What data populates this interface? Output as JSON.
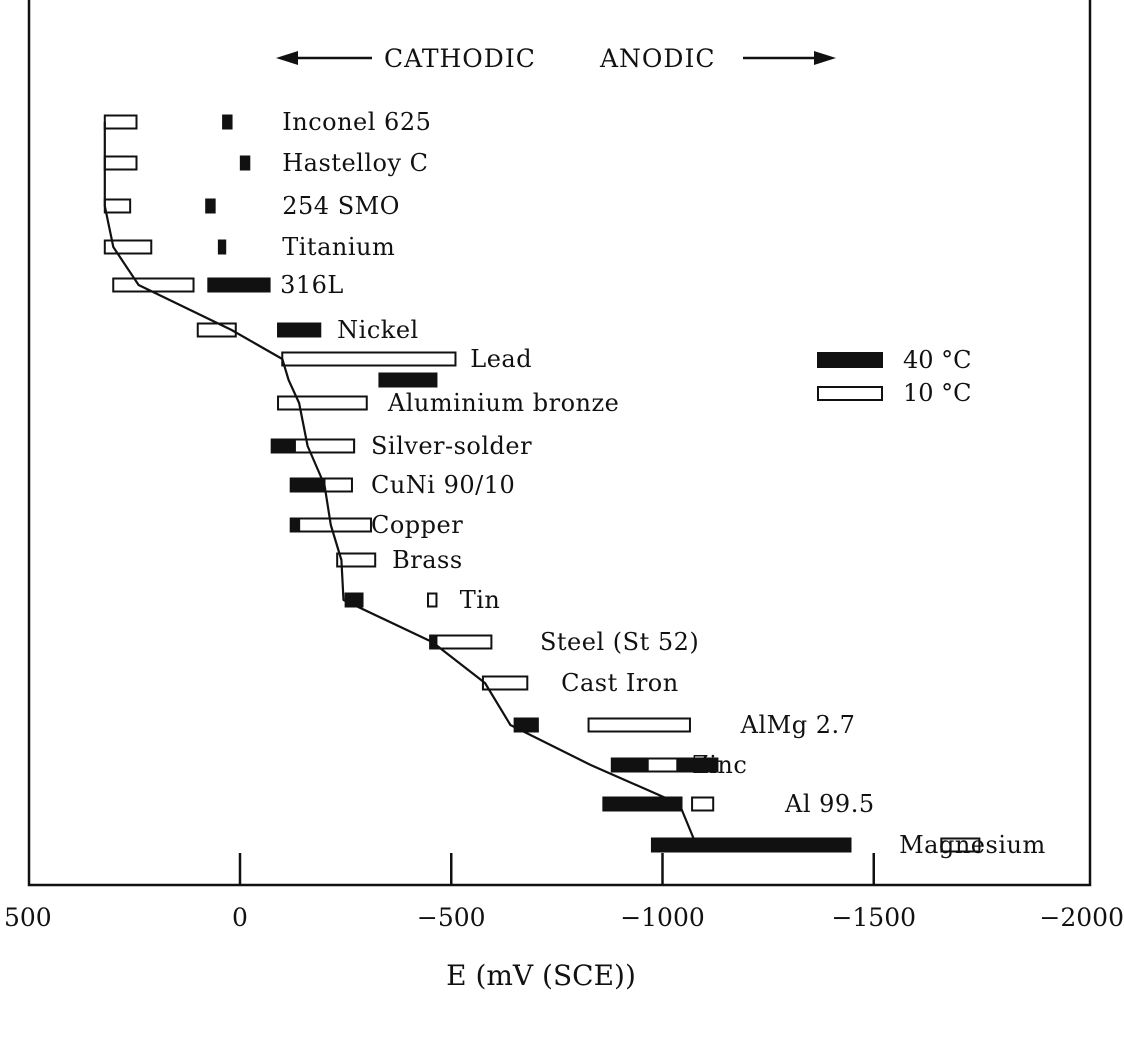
{
  "chart_data": {
    "type": "floating-bar",
    "title": "",
    "direction_left": "CATHODIC",
    "direction_right": "ANODIC",
    "xlabel": "E (mV (SCE))",
    "ylabel": "",
    "xlim": [
      500,
      -2000
    ],
    "xticks": [
      500,
      0,
      -500,
      -1000,
      -1500,
      -2000
    ],
    "xtick_labels": [
      "500",
      "0",
      "-500",
      "-1000",
      "-1500",
      "-2000"
    ],
    "legend": {
      "position": "right",
      "entries": [
        {
          "name": "40 °C",
          "color": "#111111",
          "style": "filled"
        },
        {
          "name": "10 °C",
          "color": "#ffffff",
          "style": "open"
        }
      ]
    },
    "series": [
      {
        "name": "40 °C",
        "style": "filled",
        "bars": [
          {
            "row": 1,
            "from": 40,
            "to": 20
          },
          {
            "row": 2,
            "from": -2,
            "to": -22
          },
          {
            "row": 3,
            "from": 80,
            "to": 60
          },
          {
            "row": 4,
            "from": 50,
            "to": 35
          },
          {
            "row": 5,
            "from": 75,
            "to": -70
          },
          {
            "row": 6,
            "from": -90,
            "to": -190
          },
          {
            "row": 8,
            "from": -330,
            "to": -465
          },
          {
            "row": 10,
            "from": -75,
            "to": -270
          },
          {
            "row": 11,
            "from": -120,
            "to": -260
          },
          {
            "row": 12,
            "from": -120,
            "to": -260
          },
          {
            "row": 13,
            "from": -250,
            "to": -290
          },
          {
            "row": 14,
            "from": -250,
            "to": -290
          },
          {
            "row": 15,
            "from": -450,
            "to": -490
          },
          {
            "row": 16,
            "from": -590,
            "to": -660
          },
          {
            "row": 17,
            "from": -650,
            "to": -705
          },
          {
            "row": 18,
            "from": -880,
            "to": -1130
          },
          {
            "row": 19,
            "from": -860,
            "to": -1045
          },
          {
            "row": 20,
            "from": -975,
            "to": -1445
          }
        ]
      },
      {
        "name": "10 °C",
        "style": "open",
        "bars": [
          {
            "row": 1,
            "from": 320,
            "to": 245
          },
          {
            "row": 2,
            "from": 320,
            "to": 245
          },
          {
            "row": 3,
            "from": 320,
            "to": 260
          },
          {
            "row": 4,
            "from": 320,
            "to": 210
          },
          {
            "row": 5,
            "from": 300,
            "to": 110
          },
          {
            "row": 6,
            "from": 100,
            "to": 10
          },
          {
            "row": 7,
            "from": -100,
            "to": -510
          },
          {
            "row": 9,
            "from": -90,
            "to": -300
          },
          {
            "row": 10,
            "from": -130,
            "to": -270
          },
          {
            "row": 11,
            "from": -200,
            "to": -265
          },
          {
            "row": 12,
            "from": -140,
            "to": -310
          },
          {
            "row": 13,
            "from": -230,
            "to": -320
          },
          {
            "row": 14,
            "from": -445,
            "to": -465
          },
          {
            "row": 15,
            "from": -465,
            "to": -595
          },
          {
            "row": 16,
            "from": -575,
            "to": -680
          },
          {
            "row": 17,
            "from": -825,
            "to": -1065
          },
          {
            "row": 18,
            "from": -965,
            "to": -1035
          },
          {
            "row": 19,
            "from": -1070,
            "to": -1120
          },
          {
            "row": 20,
            "from": -1660,
            "to": -1750
          }
        ]
      }
    ],
    "trend_line": [
      {
        "x": 320,
        "row": 1
      },
      {
        "x": 320,
        "row": 2
      },
      {
        "x": 320,
        "row": 3
      },
      {
        "x": 300,
        "row": 4
      },
      {
        "x": 240,
        "row": 5
      },
      {
        "x": 20,
        "row": 6
      },
      {
        "x": -100,
        "row": 7
      },
      {
        "x": -115,
        "row": 8
      },
      {
        "x": -140,
        "row": 9
      },
      {
        "x": -160,
        "row": 10
      },
      {
        "x": -200,
        "row": 11
      },
      {
        "x": -215,
        "row": 12
      },
      {
        "x": -240,
        "row": 13
      },
      {
        "x": -245,
        "row": 14
      },
      {
        "x": -455,
        "row": 15
      },
      {
        "x": -580,
        "row": 16
      },
      {
        "x": -640,
        "row": 17
      },
      {
        "x": -830,
        "row": 18
      },
      {
        "x": -1040,
        "row": 19
      },
      {
        "x": -1080,
        "row": 20
      }
    ],
    "metals": [
      {
        "name": "Inconel 625",
        "row": 1,
        "label_x": -100,
        "label_row": 1
      },
      {
        "name": "Hastelloy C",
        "row": 2,
        "label_x": -100,
        "label_row": 2
      },
      {
        "name": "254 SMO",
        "row": 3,
        "label_x": -100,
        "label_row": 3
      },
      {
        "name": "Titanium",
        "row": 4,
        "label_x": -100,
        "label_row": 4
      },
      {
        "name": "316L",
        "row": 5,
        "label_x": -95,
        "label_row": 5
      },
      {
        "name": "Nickel",
        "row": 6,
        "label_x": -230,
        "label_row": 6
      },
      {
        "name": "Lead",
        "row": 7,
        "label_x": -545,
        "label_row": 7
      },
      {
        "name": "Aluminium bronze",
        "row": 9,
        "label_x": -350,
        "label_row": 9
      },
      {
        "name": "Silver-solder",
        "row": 10,
        "label_x": -310,
        "label_row": 10
      },
      {
        "name": "CuNi 90/10",
        "row": 11,
        "label_x": -310,
        "label_row": 11
      },
      {
        "name": "Copper",
        "row": 12,
        "label_x": -310,
        "label_row": 12
      },
      {
        "name": "Brass",
        "row": 13,
        "label_x": -360,
        "label_row": 13
      },
      {
        "name": "Tin",
        "row": 14,
        "label_x": -520,
        "label_row": 14
      },
      {
        "name": "Steel (St 52)",
        "row": 15,
        "label_x": -710,
        "label_row": 15
      },
      {
        "name": "Cast Iron",
        "row": 16,
        "label_x": -760,
        "label_row": 16
      },
      {
        "name": "AlMg 2.7",
        "row": 17,
        "label_x": -1185,
        "label_row": 17
      },
      {
        "name": "Zinc",
        "row": 18,
        "label_x": -1070,
        "label_row": 18
      },
      {
        "name": "Al 99.5",
        "row": 19,
        "label_x": -1290,
        "label_row": 19
      },
      {
        "name": "Magnesium",
        "row": 20,
        "label_x": -1560,
        "label_row": 20
      }
    ]
  }
}
